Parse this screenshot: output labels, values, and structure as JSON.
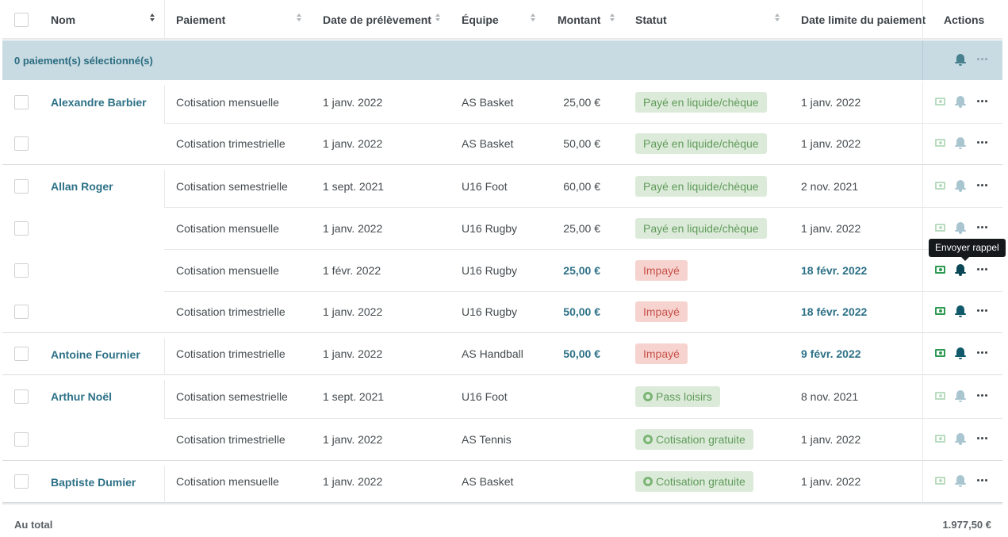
{
  "header": {
    "nom": "Nom",
    "paiement": "Paiement",
    "date_prelevement": "Date de prélèvement",
    "equipe": "Équipe",
    "montant": "Montant",
    "statut": "Statut",
    "date_limite": "Date limite du paiement",
    "actions": "Actions"
  },
  "selection": {
    "label": "0 paiement(s) sélectionné(s)"
  },
  "rows": [
    {
      "name": "Alexandre Barbier",
      "payment": "Cotisation mensuelle",
      "date": "1 janv. 2022",
      "team": "AS Basket",
      "amount": "25,00 €",
      "status": "Payé en liquide/chèque",
      "limit": "1 janv. 2022"
    },
    {
      "name": "",
      "payment": "Cotisation trimestrielle",
      "date": "1 janv. 2022",
      "team": "AS Basket",
      "amount": "50,00 €",
      "status": "Payé en liquide/chèque",
      "limit": "1 janv. 2022"
    },
    {
      "name": "Allan Roger",
      "payment": "Cotisation semestrielle",
      "date": "1 sept. 2021",
      "team": "U16 Foot",
      "amount": "60,00 €",
      "status": "Payé en liquide/chèque",
      "limit": "2 nov. 2021"
    },
    {
      "name": "",
      "payment": "Cotisation mensuelle",
      "date": "1 janv. 2022",
      "team": "U16 Rugby",
      "amount": "25,00 €",
      "status": "Payé en liquide/chèque",
      "limit": "1 janv. 2022"
    },
    {
      "name": "",
      "payment": "Cotisation mensuelle",
      "date": "1 févr. 2022",
      "team": "U16 Rugby",
      "amount": "25,00 €",
      "status": "Impayé",
      "limit": "18 févr. 2022"
    },
    {
      "name": "",
      "payment": "Cotisation trimestrielle",
      "date": "1 janv. 2022",
      "team": "U16 Rugby",
      "amount": "50,00 €",
      "status": "Impayé",
      "limit": "18 févr. 2022"
    },
    {
      "name": "Antoine Fournier",
      "payment": "Cotisation trimestrielle",
      "date": "1 janv. 2022",
      "team": "AS Handball",
      "amount": "50,00 €",
      "status": "Impayé",
      "limit": "9 févr. 2022"
    },
    {
      "name": "Arthur Noël",
      "payment": "Cotisation semestrielle",
      "date": "1 sept. 2021",
      "team": "U16 Foot",
      "amount": "",
      "status": "Pass loisirs",
      "limit": "8 nov. 2021"
    },
    {
      "name": "",
      "payment": "Cotisation trimestrielle",
      "date": "1 janv. 2022",
      "team": "AS Tennis",
      "amount": "",
      "status": "Cotisation gratuite",
      "limit": "1 janv. 2022"
    },
    {
      "name": "Baptiste Dumier",
      "payment": "Cotisation mensuelle",
      "date": "1 janv. 2022",
      "team": "AS Basket",
      "amount": "",
      "status": "Cotisation gratuite",
      "limit": "1 janv. 2022"
    }
  ],
  "tooltip": "Envoyer rappel",
  "footer": {
    "label": "Au total",
    "total": "1.977,50 €"
  },
  "icons": {
    "money": "banknote-icon",
    "bell": "bell-icon",
    "more": "more-dots-icon",
    "leisure": "pass-loisirs-icon",
    "free": "gift-icon"
  },
  "colors": {
    "accent": "#2d7187",
    "paid_bg": "#dcebd9",
    "unpaid_bg": "#f6d3cf",
    "selection_bg": "#c9dbe2"
  }
}
